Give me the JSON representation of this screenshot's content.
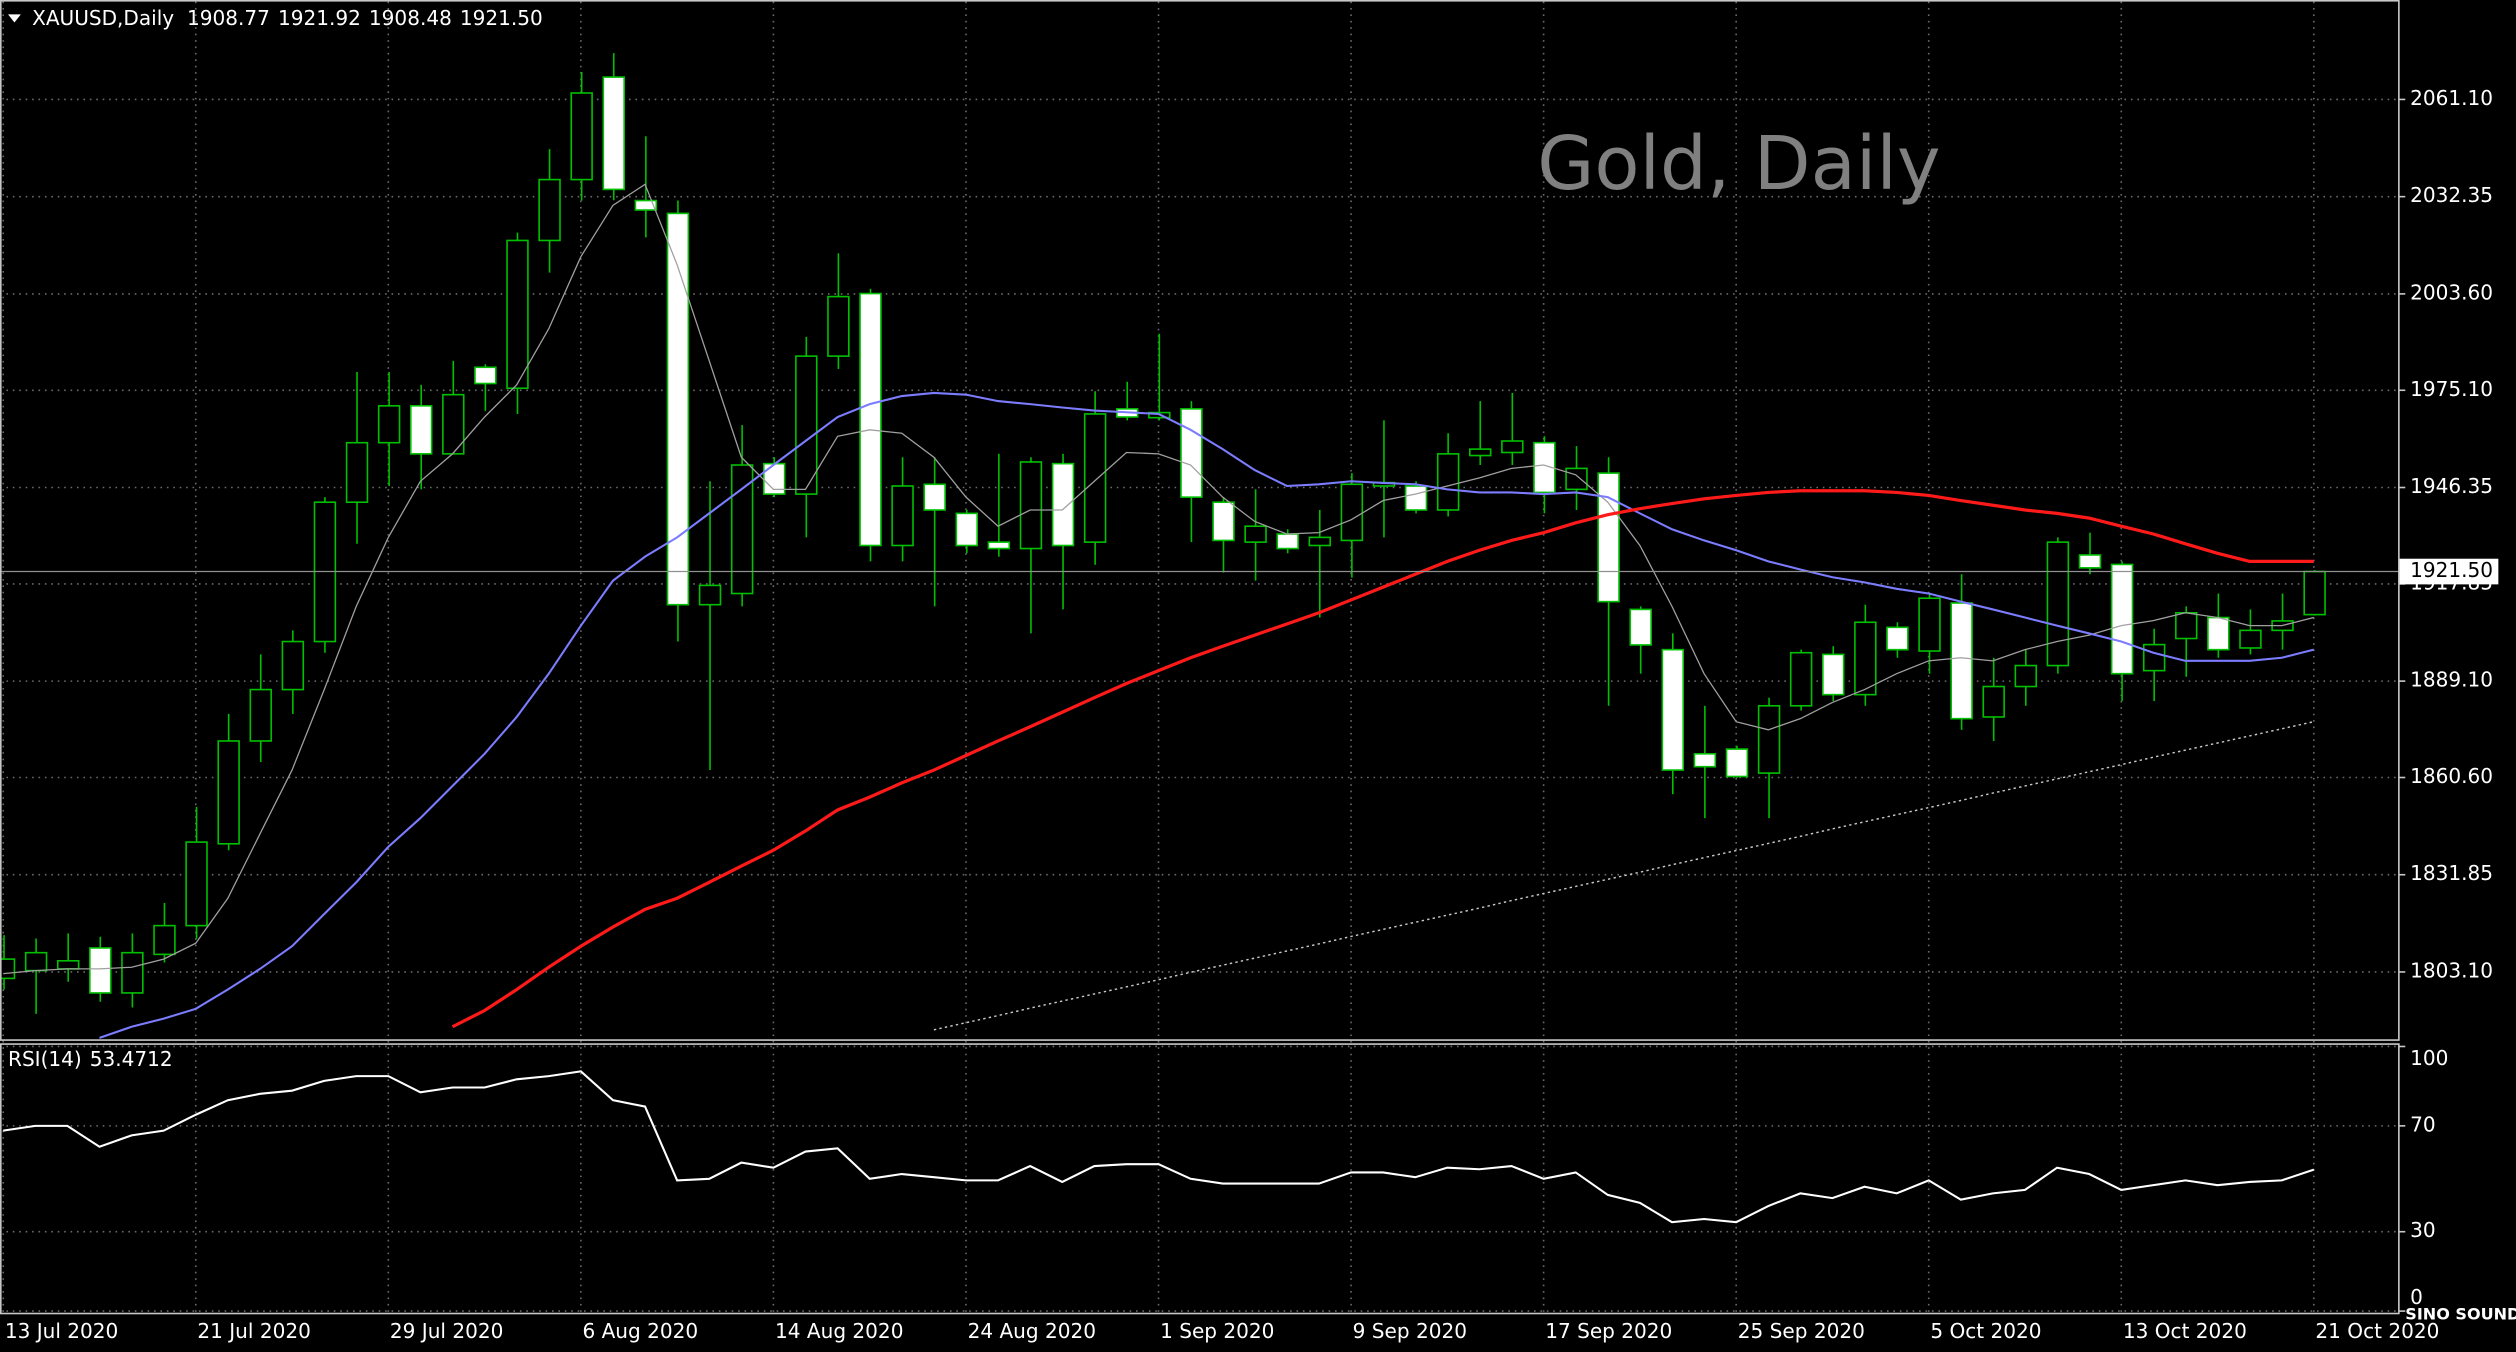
{
  "chart_data": [
    {
      "type": "candlestick",
      "title": "Gold, Daily",
      "symbol": "XAUUSD,Daily",
      "last_price": {
        "value": 1921.5,
        "label": "1921.50"
      },
      "bull_color": "#000000",
      "bear_color": "#ffffff",
      "wick_color": "#00c000",
      "ylim": [
        1783.2,
        2090.5
      ],
      "yticks": [
        {
          "value": 2061.1,
          "label": "2061.10"
        },
        {
          "value": 2032.35,
          "label": "2032.35"
        },
        {
          "value": 2003.6,
          "label": "2003.60"
        },
        {
          "value": 1975.1,
          "label": "1975.10"
        },
        {
          "value": 1946.35,
          "label": "1946.35"
        },
        {
          "value": 1917.85,
          "label": "1917.85"
        },
        {
          "value": 1889.1,
          "label": "1889.10"
        },
        {
          "value": 1860.6,
          "label": "1860.60"
        },
        {
          "value": 1831.85,
          "label": "1831.85"
        },
        {
          "value": 1803.1,
          "label": "1803.10"
        }
      ],
      "grid": true,
      "open": [
        1801.2,
        1803.5,
        1804.0,
        1810.2,
        1796.9,
        1808.3,
        1816.8,
        1841.0,
        1871.4,
        1886.6,
        1900.8,
        1942.0,
        1959.6,
        1970.5,
        1956.3,
        1981.9,
        1975.7,
        2019.4,
        2037.4,
        2067.7,
        2031.2,
        2027.4,
        1911.7,
        1915.0,
        1953.4,
        1944.4,
        1985.2,
        2003.7,
        1929.2,
        1947.3,
        1938.7,
        1930.2,
        1928.3,
        1953.4,
        1930.2,
        1969.6,
        1967.0,
        1969.6,
        1942.0,
        1930.2,
        1932.6,
        1929.2,
        1930.7,
        1946.8,
        1946.8,
        1939.7,
        1955.8,
        1956.7,
        1959.6,
        1945.8,
        1950.6,
        1910.3,
        1898.4,
        1867.6,
        1869.0,
        1861.9,
        1881.8,
        1897.0,
        1885.1,
        1905.0,
        1898.0,
        1912.2,
        1878.5,
        1887.5,
        1893.7,
        1926.4,
        1923.6,
        1892.2,
        1901.7,
        1907.9,
        1898.9,
        1904.1,
        1908.77
      ],
      "high": [
        1814.0,
        1813.0,
        1814.5,
        1813.5,
        1814.5,
        1823.5,
        1851.9,
        1879.4,
        1897.0,
        1904.1,
        1943.5,
        1980.5,
        1980.5,
        1976.7,
        1983.8,
        1982.8,
        2021.7,
        2046.4,
        2069.2,
        2074.8,
        2050.2,
        2031.2,
        1948.2,
        1964.8,
        1955.3,
        1990.9,
        2015.6,
        2005.1,
        1955.3,
        1955.3,
        1939.7,
        1956.3,
        1955.3,
        1956.3,
        1974.8,
        1977.6,
        1991.8,
        1971.9,
        1943.5,
        1945.8,
        1934.0,
        1939.7,
        1950.6,
        1966.2,
        1948.2,
        1962.4,
        1971.9,
        1974.3,
        1961.5,
        1958.6,
        1955.3,
        1911.2,
        1903.2,
        1881.8,
        1870.0,
        1884.2,
        1898.4,
        1899.4,
        1911.7,
        1906.5,
        1915.0,
        1920.7,
        1896.0,
        1898.4,
        1931.6,
        1933.0,
        1924.5,
        1904.6,
        1911.2,
        1915.0,
        1910.3,
        1915.0,
        1921.92
      ],
      "low": [
        1797.9,
        1790.7,
        1800.2,
        1794.3,
        1792.6,
        1805.9,
        1813.0,
        1839.1,
        1865.2,
        1879.4,
        1897.5,
        1929.7,
        1946.8,
        1945.8,
        1956.3,
        1969.0,
        1968.1,
        2009.9,
        2031.2,
        2031.3,
        2020.3,
        1900.8,
        1862.8,
        1911.2,
        1943.5,
        1931.6,
        1981.4,
        1924.5,
        1924.5,
        1911.2,
        1926.9,
        1925.9,
        1903.2,
        1910.3,
        1923.5,
        1966.2,
        1966.2,
        1930.2,
        1921.2,
        1918.8,
        1926.9,
        1907.9,
        1919.7,
        1931.6,
        1938.7,
        1937.8,
        1953.0,
        1953.0,
        1938.7,
        1939.7,
        1881.8,
        1891.3,
        1855.7,
        1848.6,
        1860.5,
        1848.6,
        1880.4,
        1883.2,
        1881.8,
        1896.0,
        1891.3,
        1874.7,
        1871.4,
        1881.8,
        1891.3,
        1920.7,
        1883.2,
        1883.2,
        1890.4,
        1896.0,
        1897.0,
        1898.4,
        1908.48
      ],
      "close": [
        1806.9,
        1808.8,
        1806.4,
        1796.9,
        1808.8,
        1816.8,
        1841.5,
        1871.4,
        1886.6,
        1900.8,
        1942.0,
        1959.6,
        1970.5,
        1956.3,
        1973.8,
        1977.1,
        2019.4,
        2037.4,
        2063.0,
        2034.5,
        2028.4,
        1911.7,
        1917.4,
        1953.0,
        1944.4,
        1985.2,
        2002.8,
        1929.2,
        1946.8,
        1939.7,
        1929.2,
        1928.3,
        1953.9,
        1929.2,
        1968.1,
        1967.2,
        1968.5,
        1943.5,
        1930.7,
        1934.9,
        1928.3,
        1931.6,
        1947.3,
        1947.8,
        1939.7,
        1956.3,
        1957.7,
        1960.1,
        1944.9,
        1952.0,
        1912.6,
        1899.8,
        1862.8,
        1863.8,
        1860.9,
        1881.8,
        1897.5,
        1885.1,
        1906.5,
        1898.4,
        1913.6,
        1878.0,
        1887.5,
        1893.7,
        1930.2,
        1922.6,
        1891.3,
        1899.9,
        1909.3,
        1898.4,
        1904.1,
        1906.9,
        1921.5
      ],
      "series": [
        {
          "color": "#a0a0a0",
          "values": [
            1802.6,
            1803.5,
            1804.0,
            1804.0,
            1804.5,
            1806.9,
            1811.6,
            1824.9,
            1843.9,
            1862.8,
            1886.5,
            1911.2,
            1931.6,
            1948.2,
            1956.3,
            1967.2,
            1976.7,
            1993.3,
            2014.6,
            2029.8,
            2036.0,
            2012.2,
            1983.8,
            1955.3,
            1945.8,
            1945.8,
            1961.5,
            1963.4,
            1962.4,
            1955.3,
            1943.5,
            1934.9,
            1939.7,
            1939.7,
            1948.2,
            1956.7,
            1956.3,
            1953.0,
            1943.5,
            1936.3,
            1932.6,
            1933.0,
            1936.8,
            1942.5,
            1944.4,
            1946.8,
            1949.2,
            1952.0,
            1953.0,
            1950.1,
            1942.0,
            1929.2,
            1911.2,
            1891.3,
            1877.1,
            1874.7,
            1878.0,
            1882.8,
            1886.6,
            1891.3,
            1895.1,
            1896.0,
            1895.1,
            1898.4,
            1900.8,
            1902.7,
            1905.5,
            1907.0,
            1909.3,
            1907.9,
            1905.5,
            1905.5,
            1907.9
          ]
        },
        {
          "color": "#7c7cff",
          "values": [
            null,
            null,
            null,
            1783.6,
            1786.9,
            1789.3,
            1792.2,
            1797.9,
            1804.0,
            1810.7,
            1820.2,
            1829.6,
            1840.1,
            1848.6,
            1858.1,
            1867.6,
            1878.5,
            1891.3,
            1905.5,
            1918.8,
            1925.9,
            1931.6,
            1938.7,
            1945.8,
            1953.0,
            1960.1,
            1967.2,
            1971.0,
            1973.4,
            1974.3,
            1973.8,
            1971.9,
            1971.0,
            1970.0,
            1969.1,
            1968.6,
            1968.1,
            1963.4,
            1957.7,
            1951.5,
            1946.8,
            1947.3,
            1948.2,
            1947.7,
            1947.3,
            1945.8,
            1944.9,
            1944.9,
            1944.4,
            1944.9,
            1943.5,
            1938.7,
            1934.0,
            1930.7,
            1927.8,
            1924.5,
            1922.1,
            1919.8,
            1918.3,
            1916.4,
            1915.0,
            1912.6,
            1910.3,
            1907.9,
            1905.5,
            1903.2,
            1900.8,
            1897.5,
            1895.1,
            1895.1,
            1895.1,
            1896.0,
            1898.4
          ]
        },
        {
          "color": "#ff1a1a",
          "values": [
            null,
            null,
            null,
            null,
            null,
            null,
            null,
            null,
            null,
            null,
            null,
            null,
            null,
            null,
            1786.9,
            1791.7,
            1797.9,
            1804.5,
            1810.7,
            1816.4,
            1821.6,
            1824.9,
            1829.6,
            1834.4,
            1839.1,
            1844.8,
            1851.0,
            1854.8,
            1859.0,
            1862.8,
            1867.1,
            1871.4,
            1875.6,
            1879.9,
            1884.2,
            1888.4,
            1892.2,
            1896.0,
            1899.4,
            1902.7,
            1906.0,
            1909.3,
            1913.1,
            1916.9,
            1920.7,
            1924.5,
            1927.8,
            1930.7,
            1933.0,
            1935.9,
            1938.3,
            1940.1,
            1941.6,
            1943.0,
            1944.0,
            1944.9,
            1945.4,
            1945.4,
            1945.4,
            1944.9,
            1944.0,
            1942.5,
            1941.1,
            1939.7,
            1938.7,
            1937.3,
            1934.9,
            1932.6,
            1929.7,
            1926.9,
            1924.5,
            1924.5,
            1924.5
          ]
        },
        {
          "color": "#c8c8c8",
          "style": "dotted",
          "values": [
            null,
            null,
            null,
            null,
            null,
            null,
            null,
            null,
            null,
            null,
            null,
            null,
            null,
            null,
            null,
            null,
            null,
            null,
            null,
            null,
            null,
            null,
            null,
            null,
            null,
            null,
            null,
            null,
            null,
            1786.0,
            1788.1,
            1790.2,
            1792.4,
            1794.5,
            1796.6,
            1798.7,
            1800.8,
            1803.0,
            1805.1,
            1807.2,
            1809.3,
            1811.4,
            1813.6,
            1815.7,
            1817.8,
            1819.9,
            1822.0,
            1824.2,
            1826.3,
            1828.4,
            1830.5,
            1832.6,
            1834.8,
            1836.9,
            1839.0,
            1841.1,
            1843.2,
            1845.4,
            1847.5,
            1849.6,
            1851.7,
            1853.8,
            1856.0,
            1858.1,
            1860.2,
            1862.3,
            1864.4,
            1866.6,
            1868.7,
            1870.8,
            1872.9,
            1875.0,
            1877.1
          ]
        }
      ]
    },
    {
      "type": "line",
      "ylim": [
        0,
        100
      ],
      "yticks": [
        0,
        30,
        70,
        100
      ],
      "grid": true,
      "categories": [
        "13 Jul 2020",
        null,
        null,
        null,
        null,
        null,
        "21 Jul 2020",
        null,
        null,
        null,
        null,
        null,
        "29 Jul 2020",
        null,
        null,
        null,
        null,
        null,
        "6 Aug 2020",
        null,
        null,
        null,
        null,
        null,
        "14 Aug 2020",
        null,
        null,
        null,
        null,
        null,
        "24 Aug 2020",
        null,
        null,
        null,
        null,
        null,
        "1 Sep 2020",
        null,
        null,
        null,
        null,
        null,
        "9 Sep 2020",
        null,
        null,
        null,
        null,
        null,
        "17 Sep 2020",
        null,
        null,
        null,
        null,
        null,
        "25 Sep 2020",
        null,
        null,
        null,
        null,
        null,
        "5 Oct 2020",
        null,
        null,
        null,
        null,
        null,
        "13 Oct 2020",
        null,
        null,
        null,
        null,
        null,
        "21 Oct 2020"
      ],
      "series": [
        {
          "name": "RSI(14)",
          "color": "#ffffff",
          "values": [
            68.2,
            70.0,
            70.0,
            62.1,
            66.4,
            68.2,
            74.2,
            79.7,
            82.1,
            83.3,
            87.0,
            88.8,
            88.8,
            82.7,
            84.5,
            84.5,
            87.6,
            88.8,
            90.6,
            79.7,
            77.3,
            49.4,
            50.0,
            56.1,
            54.2,
            60.3,
            61.5,
            50.0,
            51.8,
            50.6,
            49.4,
            49.4,
            54.8,
            48.8,
            54.8,
            55.5,
            55.5,
            50.0,
            48.2,
            48.2,
            48.2,
            48.2,
            52.4,
            52.4,
            50.6,
            54.2,
            53.6,
            54.8,
            50.0,
            52.4,
            43.9,
            40.9,
            33.6,
            34.8,
            33.6,
            39.7,
            44.5,
            42.7,
            47.0,
            44.5,
            49.4,
            42.1,
            44.5,
            45.8,
            54.2,
            51.8,
            45.8,
            47.6,
            49.4,
            47.6,
            48.8,
            49.4,
            53.4712
          ]
        }
      ]
    }
  ],
  "logo": "SINO SOUND"
}
